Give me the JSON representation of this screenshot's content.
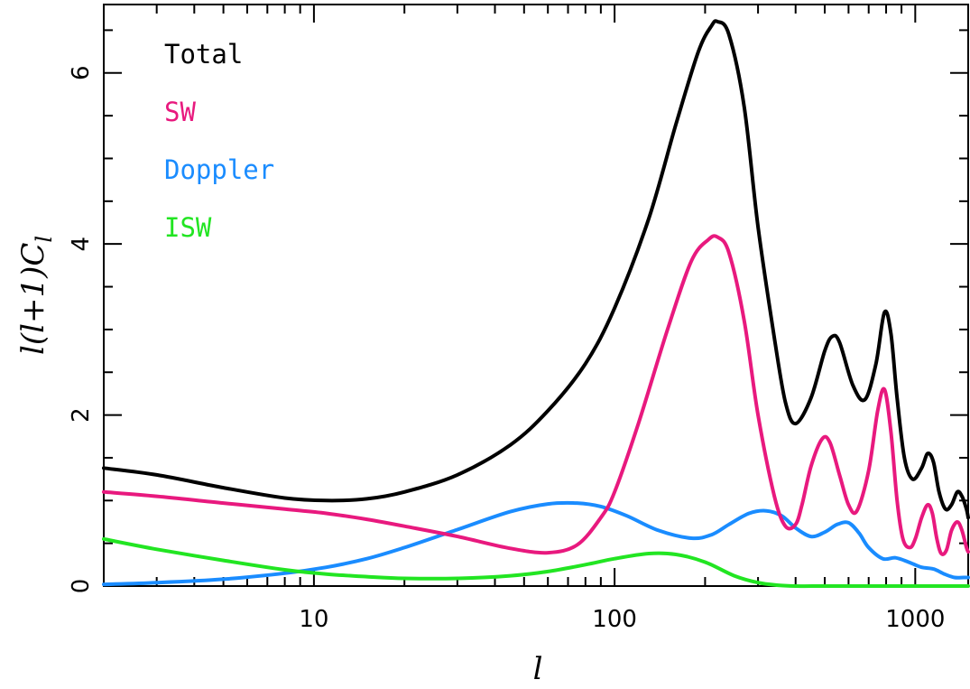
{
  "chart_data": {
    "type": "line",
    "title": "",
    "xlabel": "l",
    "ylabel": "l(l+1)C_l",
    "xscale": "log",
    "xlim": [
      2,
      1500
    ],
    "ylim": [
      0,
      6.8
    ],
    "grid": false,
    "legend_placement": "top-left",
    "x_ticks": [
      {
        "value": 10,
        "label": "10"
      },
      {
        "value": 100,
        "label": "100"
      },
      {
        "value": 1000,
        "label": "1000"
      }
    ],
    "y_ticks": [
      {
        "value": 0,
        "label": "0"
      },
      {
        "value": 2,
        "label": "2"
      },
      {
        "value": 4,
        "label": "4"
      },
      {
        "value": 6,
        "label": "6"
      }
    ],
    "series": [
      {
        "name": "Total",
        "color": "#000000",
        "x": [
          2,
          3,
          5,
          8,
          11,
          15,
          20,
          30,
          45,
          60,
          80,
          100,
          130,
          160,
          190,
          210,
          220,
          240,
          270,
          300,
          340,
          370,
          400,
          450,
          500,
          530,
          560,
          620,
          680,
          740,
          790,
          830,
          870,
          920,
          980,
          1050,
          1100,
          1150,
          1200,
          1260,
          1320,
          1380,
          1430,
          1480,
          1500
        ],
        "y": [
          1.38,
          1.3,
          1.15,
          1.03,
          1.0,
          1.02,
          1.1,
          1.3,
          1.65,
          2.05,
          2.6,
          3.25,
          4.3,
          5.4,
          6.25,
          6.55,
          6.6,
          6.45,
          5.6,
          4.2,
          2.9,
          2.15,
          1.9,
          2.2,
          2.75,
          2.92,
          2.85,
          2.35,
          2.18,
          2.6,
          3.2,
          2.95,
          2.2,
          1.5,
          1.25,
          1.38,
          1.55,
          1.45,
          1.1,
          0.9,
          0.95,
          1.1,
          1.05,
          0.9,
          0.8
        ]
      },
      {
        "name": "SW",
        "color": "#e8197e",
        "x": [
          2,
          3,
          5,
          8,
          11,
          15,
          20,
          30,
          45,
          60,
          75,
          90,
          100,
          120,
          150,
          180,
          205,
          220,
          240,
          270,
          300,
          340,
          370,
          400,
          420,
          450,
          490,
          520,
          560,
          600,
          640,
          700,
          750,
          790,
          830,
          870,
          910,
          960,
          1000,
          1050,
          1100,
          1140,
          1180,
          1220,
          1270,
          1320,
          1380,
          1430,
          1480,
          1500
        ],
        "y": [
          1.1,
          1.05,
          0.97,
          0.9,
          0.85,
          0.78,
          0.7,
          0.58,
          0.44,
          0.39,
          0.48,
          0.8,
          1.1,
          1.9,
          3.0,
          3.8,
          4.05,
          4.08,
          3.9,
          3.1,
          2.0,
          1.05,
          0.7,
          0.72,
          0.95,
          1.4,
          1.72,
          1.68,
          1.3,
          0.95,
          0.88,
          1.35,
          2.05,
          2.3,
          1.8,
          1.0,
          0.55,
          0.45,
          0.55,
          0.8,
          0.95,
          0.85,
          0.55,
          0.38,
          0.42,
          0.65,
          0.75,
          0.65,
          0.45,
          0.4
        ]
      },
      {
        "name": "Doppler",
        "color": "#1a8cff",
        "x": [
          2,
          3,
          5,
          8,
          11,
          15,
          20,
          30,
          45,
          60,
          75,
          90,
          110,
          140,
          180,
          210,
          240,
          280,
          320,
          360,
          400,
          450,
          500,
          550,
          600,
          650,
          700,
          780,
          860,
          950,
          1050,
          1150,
          1250,
          1350,
          1450,
          1500
        ],
        "y": [
          0.02,
          0.04,
          0.08,
          0.15,
          0.22,
          0.32,
          0.45,
          0.66,
          0.87,
          0.96,
          0.97,
          0.93,
          0.82,
          0.65,
          0.56,
          0.6,
          0.72,
          0.85,
          0.88,
          0.82,
          0.68,
          0.58,
          0.63,
          0.72,
          0.74,
          0.62,
          0.45,
          0.32,
          0.33,
          0.28,
          0.22,
          0.2,
          0.14,
          0.1,
          0.1,
          0.1
        ]
      },
      {
        "name": "ISW",
        "color": "#22e522",
        "x": [
          2,
          3,
          5,
          8,
          11,
          15,
          20,
          30,
          45,
          60,
          80,
          100,
          130,
          160,
          200,
          250,
          300,
          350,
          400,
          500,
          700,
          1000,
          1500
        ],
        "y": [
          0.55,
          0.43,
          0.3,
          0.19,
          0.14,
          0.11,
          0.09,
          0.09,
          0.12,
          0.17,
          0.25,
          0.32,
          0.38,
          0.37,
          0.28,
          0.12,
          0.04,
          0.01,
          0.0,
          0.0,
          0.0,
          0.0,
          0.0
        ]
      }
    ]
  }
}
